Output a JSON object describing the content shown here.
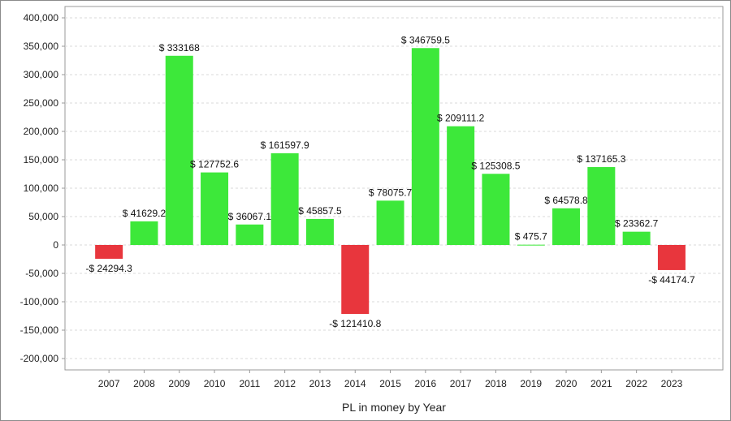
{
  "chart_data": {
    "type": "bar",
    "xlabel": "PL in money by Year",
    "ylabel": "",
    "title": "",
    "ylim": [
      -220000,
      420000
    ],
    "yticks": [
      400000,
      350000,
      300000,
      250000,
      200000,
      150000,
      100000,
      50000,
      0,
      -50000,
      -100000,
      -150000,
      -200000
    ],
    "ytick_labels": [
      "400,000",
      "350,000",
      "300,000",
      "250,000",
      "200,000",
      "150,000",
      "100,000",
      "50,000",
      "0",
      "-50,000",
      "-100,000",
      "-150,000",
      "-200,000"
    ],
    "grid": true,
    "categories": [
      "2007",
      "2008",
      "2009",
      "2010",
      "2011",
      "2012",
      "2013",
      "2014",
      "2015",
      "2016",
      "2017",
      "2018",
      "2019",
      "2020",
      "2021",
      "2022",
      "2023"
    ],
    "values": [
      -24294.3,
      41629.2,
      333168,
      127752.6,
      36067.1,
      161597.9,
      45857.5,
      -121410.8,
      78075.7,
      346759.5,
      209111.2,
      125308.5,
      475.7,
      64578.8,
      137165.3,
      23362.7,
      -44174.7
    ],
    "data_labels": [
      "-$ 24294.3",
      "$ 41629.2",
      "$ 333168",
      "$ 127752.6",
      "$ 36067.1",
      "$ 161597.9",
      "$ 45857.5",
      "-$ 121410.8",
      "$ 78075.7",
      "$ 346759.5",
      "$ 209111.2",
      "$ 125308.5",
      "$ 475.7",
      "$ 64578.8",
      "$ 137165.3",
      "$ 23362.7",
      "-$ 44174.7"
    ],
    "colors": {
      "positive": "#3de83a",
      "negative": "#e8363d",
      "grid": "#d9d9d9",
      "axis": "#999999"
    }
  }
}
